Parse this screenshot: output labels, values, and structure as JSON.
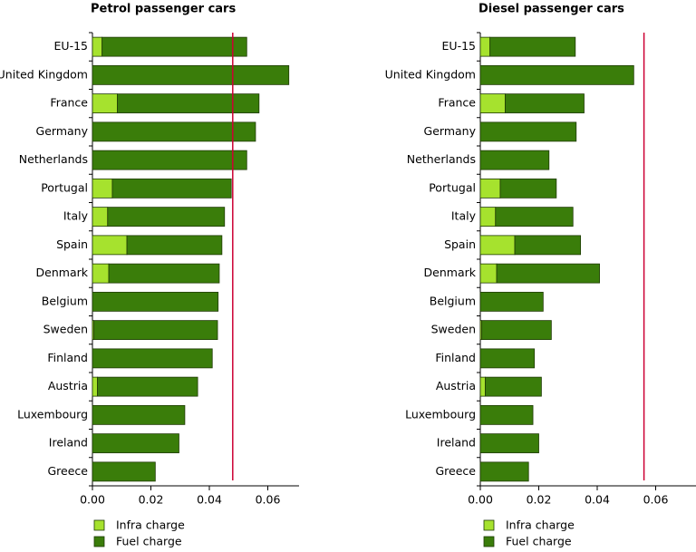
{
  "chart_data": [
    {
      "type": "bar",
      "orientation": "horizontal",
      "stacked": true,
      "title": "Petrol passenger cars",
      "categories": [
        "EU-15",
        "United Kingdom",
        "France",
        "Germany",
        "Netherlands",
        "Portugal",
        "Italy",
        "Spain",
        "Denmark",
        "Belgium",
        "Sweden",
        "Finland",
        "Austria",
        "Luxembourg",
        "Ireland",
        "Greece"
      ],
      "series": [
        {
          "name": "Infra charge",
          "color": "#a6e22e",
          "values": [
            0.0033,
            0.0,
            0.0085,
            0.0,
            0.0,
            0.0068,
            0.0052,
            0.0118,
            0.0056,
            0.0,
            0.0005,
            0.0,
            0.0017,
            0.0,
            0.0,
            0.0
          ]
        },
        {
          "name": "Fuel charge",
          "color": "#3a7d0a",
          "values": [
            0.0495,
            0.0672,
            0.0485,
            0.0558,
            0.0528,
            0.0407,
            0.04,
            0.0325,
            0.0378,
            0.043,
            0.0423,
            0.041,
            0.0343,
            0.0316,
            0.0296,
            0.0215
          ]
        }
      ],
      "xlim": [
        0,
        0.07
      ],
      "xticks": [
        "0.00",
        "0.02",
        "0.04",
        "0.06"
      ],
      "reference_line": 0.048,
      "reference_color": "#cc0033"
    },
    {
      "type": "bar",
      "orientation": "horizontal",
      "stacked": true,
      "title": "Diesel passenger cars",
      "categories": [
        "EU-15",
        "United Kingdom",
        "France",
        "Germany",
        "Netherlands",
        "Portugal",
        "Italy",
        "Spain",
        "Denmark",
        "Belgium",
        "Sweden",
        "Finland",
        "Austria",
        "Luxembourg",
        "Ireland",
        "Greece"
      ],
      "series": [
        {
          "name": "Infra charge",
          "color": "#a6e22e",
          "values": [
            0.0033,
            0.0,
            0.0085,
            0.0,
            0.0,
            0.0068,
            0.0052,
            0.0118,
            0.0056,
            0.0,
            0.0005,
            0.0,
            0.0017,
            0.0,
            0.0,
            0.0
          ]
        },
        {
          "name": "Fuel charge",
          "color": "#3a7d0a",
          "values": [
            0.0292,
            0.0525,
            0.027,
            0.0328,
            0.0235,
            0.0192,
            0.0265,
            0.0225,
            0.0352,
            0.0215,
            0.0238,
            0.0185,
            0.0192,
            0.018,
            0.02,
            0.0165
          ]
        }
      ],
      "xlim": [
        0,
        0.07
      ],
      "xticks": [
        "0.00",
        "0.02",
        "0.04",
        "0.06"
      ],
      "reference_line": 0.056,
      "reference_color": "#cc0033"
    }
  ]
}
